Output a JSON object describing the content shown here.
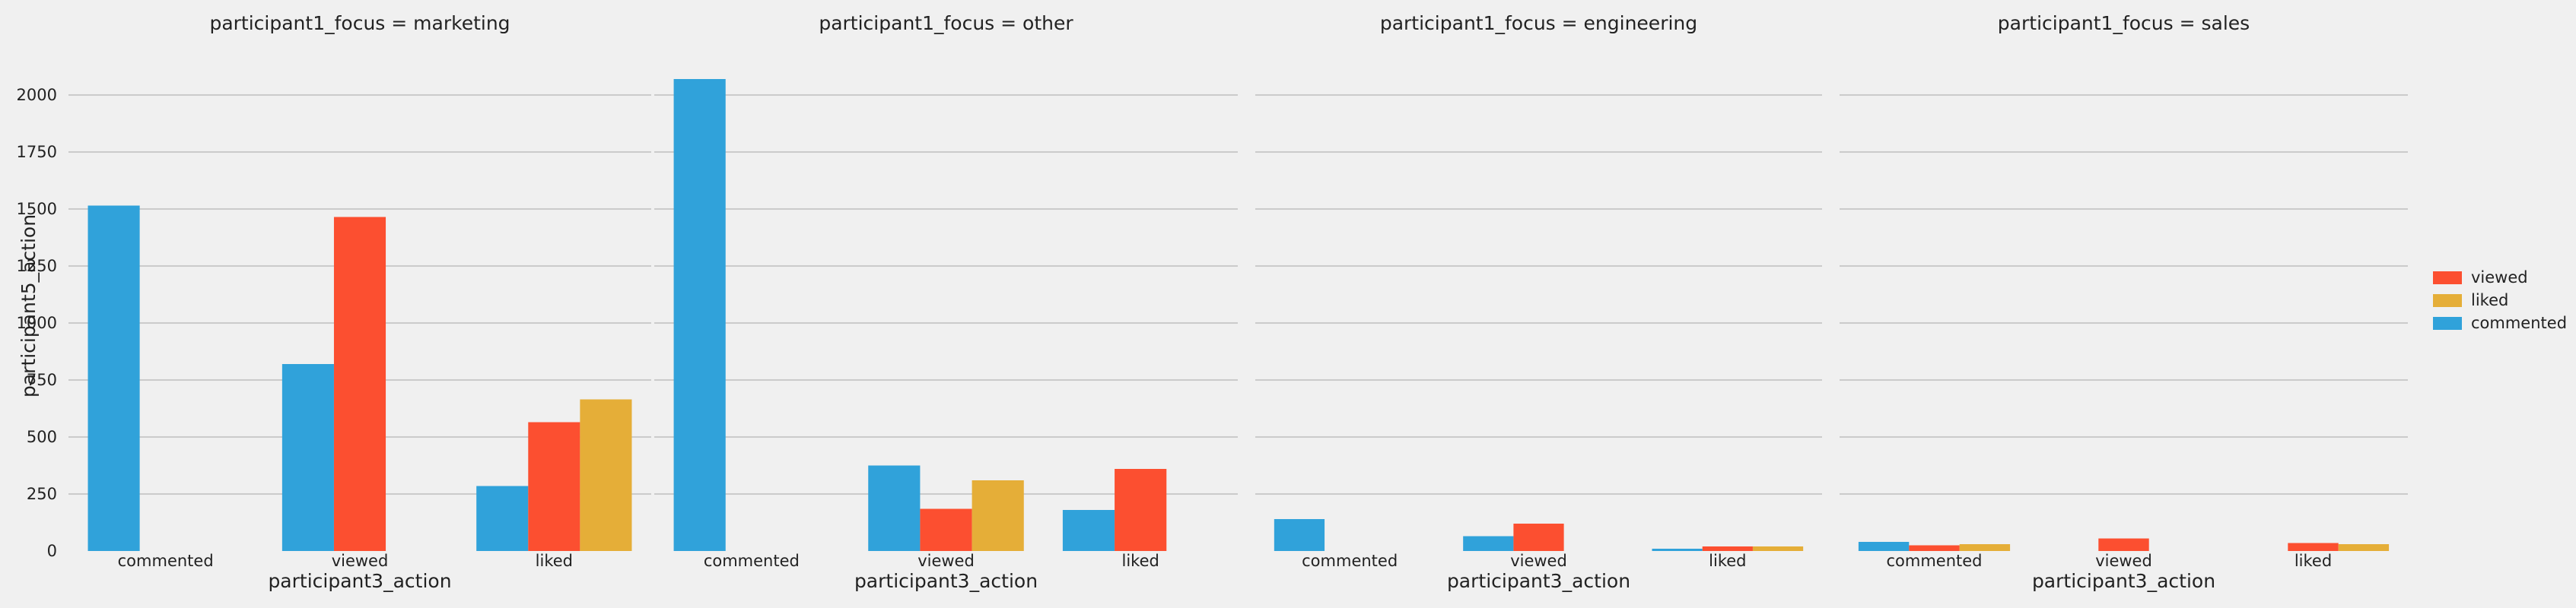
{
  "chart_data": {
    "type": "bar",
    "facet_label_prefix": "participant1_focus = ",
    "facets": [
      "marketing",
      "other",
      "engineering",
      "sales"
    ],
    "categories": [
      "commented",
      "viewed",
      "liked"
    ],
    "xlabel": "participant3_action",
    "ylabel": "participant5_action",
    "ylim": [
      0,
      2150
    ],
    "yticks": [
      0,
      250,
      500,
      750,
      1000,
      1250,
      1500,
      1750,
      2000
    ],
    "grid": true,
    "legend_position": "right",
    "series": [
      {
        "name": "commented",
        "color": "#30a2da",
        "values": {
          "marketing": [
            1515,
            820,
            285
          ],
          "other": [
            2070,
            375,
            180
          ],
          "engineering": [
            140,
            65,
            10
          ],
          "sales": [
            40,
            0,
            0
          ]
        }
      },
      {
        "name": "viewed",
        "color": "#fc4f30",
        "values": {
          "marketing": [
            0,
            1465,
            565
          ],
          "other": [
            0,
            185,
            360
          ],
          "engineering": [
            0,
            120,
            20
          ],
          "sales": [
            25,
            55,
            35
          ]
        }
      },
      {
        "name": "liked",
        "color": "#e5ae38",
        "values": {
          "marketing": [
            0,
            0,
            665
          ],
          "other": [
            0,
            310,
            0
          ],
          "engineering": [
            0,
            0,
            20
          ],
          "sales": [
            30,
            0,
            30
          ]
        }
      }
    ],
    "legend_order": [
      "viewed",
      "liked",
      "commented"
    ]
  }
}
